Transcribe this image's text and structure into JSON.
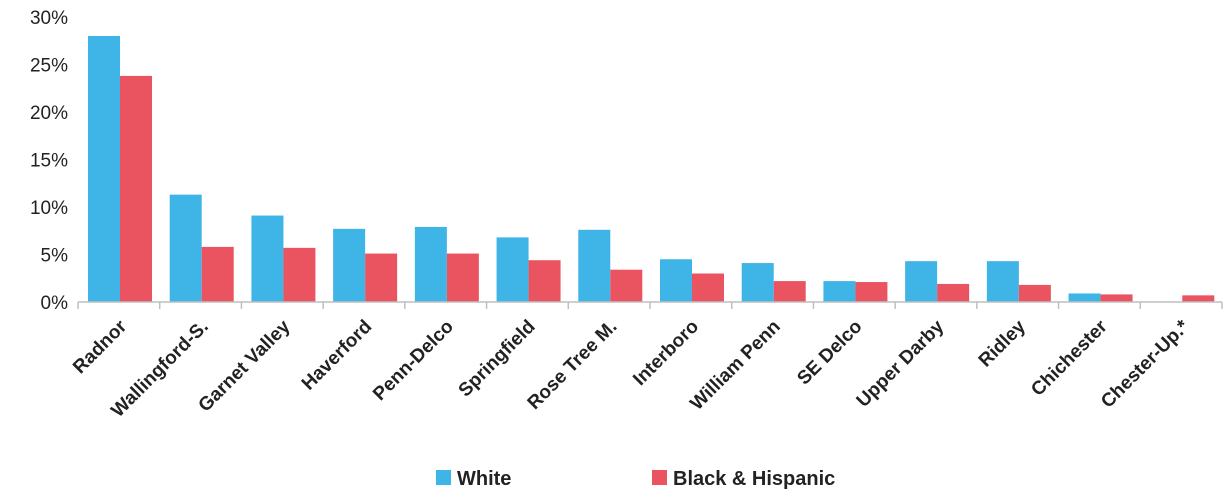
{
  "chart_data": {
    "type": "bar",
    "categories": [
      "Radnor",
      "Wallingford-S.",
      "Garnet Valley",
      "Haverford",
      "Penn-Delco",
      "Springfield",
      "Rose Tree M.",
      "Interboro",
      "William Penn",
      "SE Delco",
      "Upper Darby",
      "Ridley",
      "Chichester",
      "Chester-Up.*"
    ],
    "series": [
      {
        "name": "White",
        "color": "#3fb4e6",
        "values": [
          28.0,
          11.3,
          9.1,
          7.7,
          7.9,
          6.8,
          7.6,
          4.5,
          4.1,
          2.2,
          4.3,
          4.3,
          0.9,
          0.0
        ]
      },
      {
        "name": "Black & Hispanic",
        "color": "#ea5460",
        "values": [
          23.8,
          5.8,
          5.7,
          5.1,
          5.1,
          4.4,
          3.4,
          3.0,
          2.2,
          2.1,
          1.9,
          1.8,
          0.8,
          0.7
        ]
      }
    ],
    "yticks": [
      "0%",
      "5%",
      "10%",
      "15%",
      "20%",
      "25%",
      "30%"
    ],
    "ylim": [
      0,
      30
    ],
    "legend_position": "bottom-center",
    "grid": false
  }
}
